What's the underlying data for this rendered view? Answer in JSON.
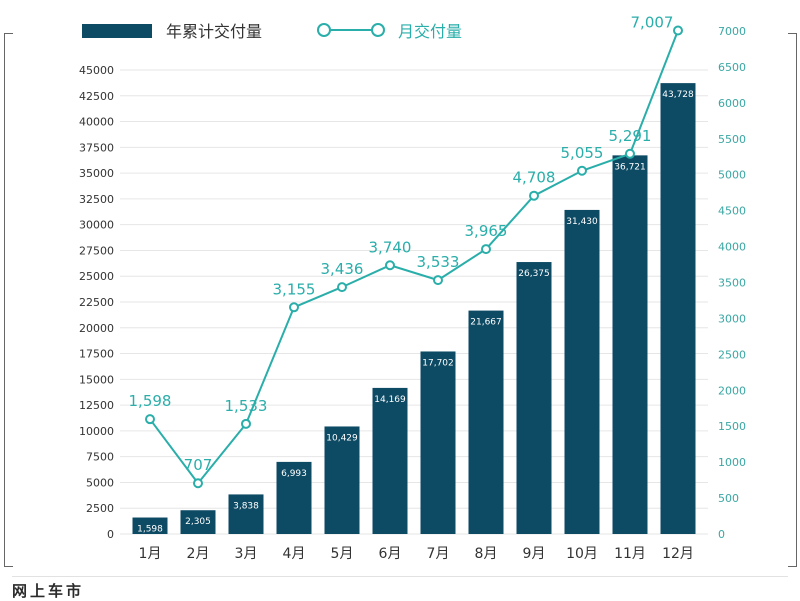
{
  "chart_data": {
    "type": "bar",
    "categories": [
      "1月",
      "2月",
      "3月",
      "4月",
      "5月",
      "6月",
      "7月",
      "8月",
      "9月",
      "10月",
      "11月",
      "12月"
    ],
    "series": [
      {
        "name": "年累计交付量",
        "type": "bar",
        "axis": "left",
        "values": [
          1598,
          2305,
          3838,
          6993,
          10429,
          14169,
          17702,
          21667,
          26375,
          31430,
          36721,
          43728
        ],
        "labels": [
          "1,598",
          "2,305",
          "3,838",
          "6,993",
          "10,429",
          "14,169",
          "17,702",
          "21,667",
          "26,375",
          "31,430",
          "36,721",
          "43,728"
        ]
      },
      {
        "name": "月交付量",
        "type": "line",
        "axis": "right",
        "values": [
          1598,
          707,
          1533,
          3155,
          3436,
          3740,
          3533,
          3965,
          4708,
          5055,
          5291,
          7007
        ],
        "labels": [
          "1,598",
          "707",
          "1,533",
          "3,155",
          "3,436",
          "3,740",
          "3,533",
          "3,965",
          "4,708",
          "5,055",
          "5,291",
          "7,007"
        ]
      }
    ],
    "y_left": {
      "ylim": [
        0,
        45000
      ],
      "ticks": [
        "0",
        "2500",
        "5000",
        "7500",
        "10000",
        "12500",
        "15000",
        "17500",
        "20000",
        "22500",
        "25000",
        "27500",
        "30000",
        "32500",
        "35000",
        "37500",
        "40000",
        "42500",
        "45000"
      ]
    },
    "y_right": {
      "ylim": [
        0,
        7000
      ],
      "ticks": [
        "0",
        "500",
        "1000",
        "1500",
        "2000",
        "2500",
        "3000",
        "3500",
        "4000",
        "4500",
        "5000",
        "5500",
        "6000",
        "6500",
        "7000"
      ]
    },
    "grid": true,
    "legend_position": "top-left"
  },
  "colors": {
    "bar": "#0d4a64",
    "line": "#2aaeaa",
    "grid": "#e6e6e6",
    "left_tick": "#333333",
    "right_tick": "#3aa7a3"
  },
  "footer": {
    "watermark": "网上车市"
  }
}
